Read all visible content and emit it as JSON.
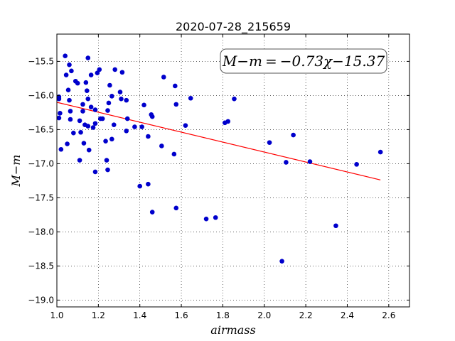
{
  "chart_data": {
    "type": "scatter",
    "title": "2020-07-28_215659",
    "xlabel": "airmass",
    "ylabel": "M−m",
    "xlim": [
      1.0,
      2.7
    ],
    "ylim": [
      -19.1,
      -15.1
    ],
    "y_inverted": true,
    "grid": true,
    "xticks": [
      "1.0",
      "1.2",
      "1.4",
      "1.6",
      "1.8",
      "2.0",
      "2.2",
      "2.4",
      "2.6"
    ],
    "yticks": [
      "−15.5",
      "−16.0",
      "−16.5",
      "−17.0",
      "−17.5",
      "−18.0",
      "−18.5",
      "−19.0"
    ],
    "xtick_values": [
      1.0,
      1.2,
      1.4,
      1.6,
      1.8,
      2.0,
      2.2,
      2.4,
      2.6
    ],
    "ytick_values": [
      -15.5,
      -16.0,
      -16.5,
      -17.0,
      -17.5,
      -18.0,
      -18.5,
      -19.0
    ],
    "annotation": "M−m = −0.73χ−15.37",
    "fit_line": {
      "slope": -0.73,
      "intercept": -15.37,
      "x_range": [
        1.0,
        2.56
      ],
      "color": "#ff0000"
    },
    "point_color": "#0000cc",
    "points": [
      [
        1.01,
        -16.02
      ],
      [
        1.01,
        -16.05
      ],
      [
        1.015,
        -16.26
      ],
      [
        1.01,
        -16.33
      ],
      [
        1.02,
        -16.79
      ],
      [
        1.04,
        -15.42
      ],
      [
        1.045,
        -15.7
      ],
      [
        1.05,
        -16.71
      ],
      [
        1.055,
        -15.92
      ],
      [
        1.06,
        -15.55
      ],
      [
        1.06,
        -16.07
      ],
      [
        1.065,
        -16.23
      ],
      [
        1.065,
        -16.35
      ],
      [
        1.07,
        -15.64
      ],
      [
        1.08,
        -16.55
      ],
      [
        1.09,
        -15.79
      ],
      [
        1.1,
        -15.82
      ],
      [
        1.11,
        -16.37
      ],
      [
        1.115,
        -16.54
      ],
      [
        1.11,
        -16.95
      ],
      [
        1.125,
        -16.13
      ],
      [
        1.125,
        -16.23
      ],
      [
        1.13,
        -16.7
      ],
      [
        1.135,
        -16.43
      ],
      [
        1.14,
        -15.81
      ],
      [
        1.145,
        -15.93
      ],
      [
        1.15,
        -15.45
      ],
      [
        1.15,
        -16.05
      ],
      [
        1.15,
        -16.45
      ],
      [
        1.155,
        -16.8
      ],
      [
        1.165,
        -15.7
      ],
      [
        1.165,
        -16.17
      ],
      [
        1.175,
        -16.47
      ],
      [
        1.185,
        -16.21
      ],
      [
        1.185,
        -16.41
      ],
      [
        1.185,
        -17.12
      ],
      [
        1.195,
        -15.67
      ],
      [
        1.205,
        -15.62
      ],
      [
        1.21,
        -16.34
      ],
      [
        1.22,
        -16.34
      ],
      [
        1.235,
        -16.67
      ],
      [
        1.24,
        -16.95
      ],
      [
        1.245,
        -17.09
      ],
      [
        1.245,
        -16.22
      ],
      [
        1.25,
        -16.11
      ],
      [
        1.255,
        -15.85
      ],
      [
        1.265,
        -16.64
      ],
      [
        1.265,
        -16.01
      ],
      [
        1.275,
        -16.43
      ],
      [
        1.28,
        -15.62
      ],
      [
        1.305,
        -15.95
      ],
      [
        1.31,
        -16.05
      ],
      [
        1.315,
        -15.66
      ],
      [
        1.335,
        -16.07
      ],
      [
        1.34,
        -16.34
      ],
      [
        1.335,
        -16.52
      ],
      [
        1.375,
        -16.46
      ],
      [
        1.4,
        -17.33
      ],
      [
        1.41,
        -16.46
      ],
      [
        1.42,
        -16.14
      ],
      [
        1.44,
        -16.6
      ],
      [
        1.44,
        -17.3
      ],
      [
        1.455,
        -16.28
      ],
      [
        1.46,
        -16.31
      ],
      [
        1.46,
        -17.71
      ],
      [
        1.505,
        -16.74
      ],
      [
        1.515,
        -15.73
      ],
      [
        1.565,
        -16.86
      ],
      [
        1.57,
        -15.86
      ],
      [
        1.575,
        -16.13
      ],
      [
        1.575,
        -17.65
      ],
      [
        1.62,
        -16.44
      ],
      [
        1.645,
        -16.04
      ],
      [
        1.72,
        -17.81
      ],
      [
        1.765,
        -17.79
      ],
      [
        1.81,
        -16.4
      ],
      [
        1.825,
        -16.38
      ],
      [
        1.855,
        -16.05
      ],
      [
        2.025,
        -16.69
      ],
      [
        2.085,
        -18.43
      ],
      [
        2.105,
        -16.98
      ],
      [
        2.14,
        -16.58
      ],
      [
        2.22,
        -16.97
      ],
      [
        2.345,
        -17.91
      ],
      [
        2.445,
        -17.01
      ],
      [
        2.56,
        -16.83
      ]
    ]
  }
}
